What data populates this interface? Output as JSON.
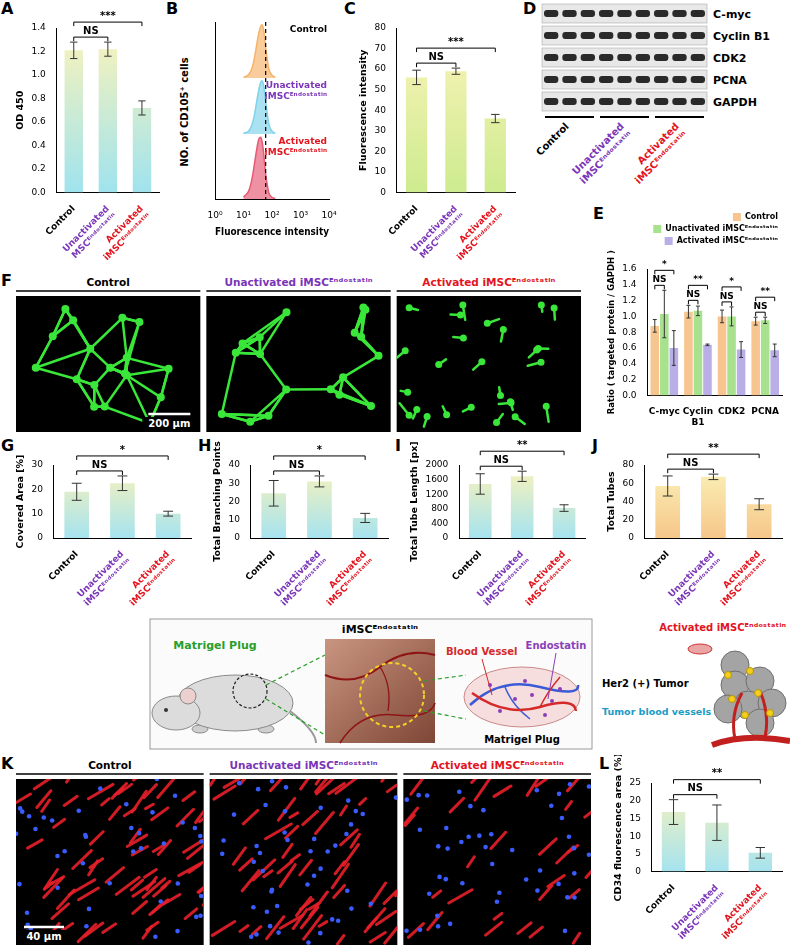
{
  "chart_data": [
    {
      "panel": "A",
      "type": "bar",
      "y_label": "OD 450",
      "categories": [
        "Control",
        "Unactivated MSCᴱⁿᵈᵒˢᵗᵃᵗⁱⁿ",
        "Activated iMSCᴱⁿᵈᵒˢᵗᵃᵗⁱⁿ"
      ],
      "values": [
        1.21,
        1.22,
        0.72
      ],
      "errors": [
        0.07,
        0.06,
        0.06
      ],
      "ylim": [
        0,
        1.4
      ],
      "yticks": [
        {
          "value": 0,
          "label": "0.0"
        },
        0.2,
        0.4,
        0.6,
        0.8,
        {
          "value": 1,
          "label": "1.0"
        },
        1.2,
        1.4
      ],
      "color": "#9fe3ee",
      "grid": false,
      "significance": [
        {
          "from": 0,
          "to": 1,
          "text": "NS"
        },
        {
          "from": 0,
          "to": 2,
          "text": "***"
        }
      ]
    },
    {
      "panel": "B",
      "type": "line",
      "x_label": "Fluorescence intensity",
      "y_label": "NO. of CD105⁺ cells",
      "log": "x",
      "xlim": [
        1,
        10000
      ],
      "xticks": [
        {
          "value": 1,
          "label": "10⁰"
        },
        {
          "value": 10,
          "label": "10¹"
        },
        {
          "value": 100,
          "label": "10²"
        },
        {
          "value": 1000,
          "label": "10³"
        },
        {
          "value": 10000,
          "label": "10⁴"
        }
      ],
      "ylim": [
        0,
        100
      ],
      "tick_labels": "x",
      "dashed_line_x": 60,
      "x": [
        10,
        15,
        20,
        25,
        30,
        35,
        40,
        45,
        50,
        55,
        60,
        70,
        80,
        100,
        130
      ],
      "series": [
        {
          "name": "Control",
          "color": "#f6b36a",
          "values": [
            1,
            6,
            18,
            40,
            64,
            82,
            92,
            95,
            88,
            72,
            54,
            30,
            14,
            5,
            1
          ]
        },
        {
          "name": "Unactivated iMSCᴱⁿᵈᵒˢᵗᵃᵗⁱⁿ",
          "color": "#7fd3ea",
          "values": [
            1,
            5,
            17,
            38,
            62,
            81,
            92,
            95,
            89,
            75,
            57,
            32,
            15,
            5,
            1
          ]
        },
        {
          "name": "Activated iMSCᴱⁿᵈᵒˢᵗᵃᵗⁱⁿ",
          "color": "#e65a74",
          "values": [
            3,
            12,
            32,
            58,
            80,
            93,
            95,
            88,
            74,
            55,
            38,
            19,
            8,
            3,
            1
          ]
        }
      ]
    },
    {
      "panel": "C",
      "type": "bar",
      "y_label": "Fluorescence intensity",
      "categories": [
        "Control",
        "Unactivated MSCᴱⁿᵈᵒˢᵗᵃᵗⁱⁿ",
        "Activated iMSCᴱⁿᵈᵒˢᵗᵃᵗⁱⁿ"
      ],
      "values": [
        56,
        59,
        36
      ],
      "errors": [
        3.5,
        1.5,
        2
      ],
      "ylim": [
        0,
        80
      ],
      "yticks": [
        0,
        10,
        20,
        30,
        40,
        50,
        60,
        70,
        80
      ],
      "color": "#cdeb8f",
      "grid": false,
      "significance": [
        {
          "from": 0,
          "to": 1,
          "text": "NS"
        },
        {
          "from": 0,
          "to": 2,
          "text": "***"
        }
      ]
    },
    {
      "panel": "E",
      "type": "bar",
      "y_label": "Ratio ( targeted protein / GAPDH )",
      "categories": [
        "C-myc",
        "Cyclin B1",
        "CDK2",
        "PCNA"
      ],
      "series": [
        {
          "name": "Control",
          "color": "#f7c58f",
          "values": [
            0.88,
            1.06,
            1.0,
            0.94
          ],
          "errors": [
            0.08,
            0.08,
            0.08,
            0.05
          ]
        },
        {
          "name": "Unactivated iMSCᴱⁿᵈᵒˢᵗᵃᵗⁱⁿ",
          "color": "#a9e28f",
          "values": [
            1.03,
            1.07,
            1.0,
            0.95
          ],
          "errors": [
            0.3,
            0.06,
            0.12,
            0.04
          ]
        },
        {
          "name": "Activated iMSCᴱⁿᵈᵒˢᵗᵃᵗⁱⁿ",
          "color": "#b9aee6",
          "values": [
            0.6,
            0.64,
            0.58,
            0.57
          ],
          "errors": [
            0.22,
            0.01,
            0.1,
            0.08
          ]
        }
      ],
      "ylim": [
        0,
        1.6
      ],
      "yticks": [
        {
          "value": 0,
          "label": "0.0"
        },
        0.2,
        0.4,
        0.6,
        0.8,
        {
          "value": 1,
          "label": "1.0"
        },
        1.2,
        1.4,
        1.6
      ],
      "grid": false,
      "legend": "top-right",
      "significance": [
        {
          "category": 0,
          "from": 0,
          "to": 1,
          "text": "NS"
        },
        {
          "category": 0,
          "from": 0,
          "to": 2,
          "text": "*"
        },
        {
          "category": 1,
          "from": 0,
          "to": 1,
          "text": "NS"
        },
        {
          "category": 1,
          "from": 0,
          "to": 2,
          "text": "**"
        },
        {
          "category": 2,
          "from": 0,
          "to": 1,
          "text": "NS"
        },
        {
          "category": 2,
          "from": 0,
          "to": 2,
          "text": "*"
        },
        {
          "category": 3,
          "from": 0,
          "to": 1,
          "text": "NS"
        },
        {
          "category": 3,
          "from": 0,
          "to": 2,
          "text": "**"
        }
      ]
    },
    {
      "panel": "G",
      "type": "bar",
      "y_label": "Covered Area [%]",
      "categories": [
        "Control",
        "Unactivated iMSCᴱⁿᵈᵒˢᵗᵃᵗⁱⁿ",
        "Activated iMSCᴱⁿᵈᵒˢᵗᵃᵗⁱⁿ"
      ],
      "values": [
        19,
        22.5,
        10
      ],
      "errors": [
        3.5,
        3,
        1
      ],
      "ylim": [
        0,
        30
      ],
      "yticks": [
        0,
        10,
        20,
        30
      ],
      "color": "#a6e3ef",
      "grid": false,
      "significance": [
        {
          "from": 0,
          "to": 1,
          "text": "NS"
        },
        {
          "from": 0,
          "to": 2,
          "text": "*"
        }
      ]
    },
    {
      "panel": "H",
      "type": "bar",
      "y_label": "Total Branching Points",
      "categories": [
        "Control",
        "Unactivated iMSCᴱⁿᵈᵒˢᵗᵃᵗⁱⁿ",
        "Activated iMSCᴱⁿᵈᵒˢᵗᵃᵗⁱⁿ"
      ],
      "values": [
        24.5,
        31,
        11
      ],
      "errors": [
        7,
        3,
        2.5
      ],
      "ylim": [
        0,
        40
      ],
      "yticks": [
        0,
        10,
        20,
        30,
        40
      ],
      "color": "#a6e3ef",
      "grid": false,
      "significance": [
        {
          "from": 0,
          "to": 1,
          "text": "NS"
        },
        {
          "from": 0,
          "to": 2,
          "text": "*"
        }
      ]
    },
    {
      "panel": "I",
      "type": "bar",
      "y_label": "Total Tube Length [px]",
      "categories": [
        "Control",
        "Unactivated iMSCᴱⁿᵈᵒˢᵗᵃᵗⁱⁿ",
        "Activated iMSCᴱⁿᵈᵒˢᵗᵃᵗⁱⁿ"
      ],
      "values": [
        1480,
        1690,
        820
      ],
      "errors": [
        280,
        140,
        90
      ],
      "ylim": [
        0,
        2000
      ],
      "yticks": [
        0,
        400,
        800,
        1200,
        1600,
        2000
      ],
      "color": "#a6e3ef",
      "grid": false,
      "significance": [
        {
          "from": 0,
          "to": 1,
          "text": "NS"
        },
        {
          "from": 0,
          "to": 2,
          "text": "**"
        }
      ]
    },
    {
      "panel": "J",
      "type": "bar",
      "y_label": "Total Tubes",
      "categories": [
        "Control",
        "Unactivated iMSCᴱⁿᵈᵒˢᵗᵃᵗⁱⁿ",
        "Activated iMSCᴱⁿᵈᵒˢᵗᵃᵗⁱⁿ"
      ],
      "values": [
        57,
        67,
        37
      ],
      "errors": [
        11,
        3,
        6
      ],
      "ylim": [
        0,
        80
      ],
      "yticks": [
        0,
        20,
        40,
        60,
        80
      ],
      "color": "#f6c68a",
      "grid": false,
      "significance": [
        {
          "from": 0,
          "to": 1,
          "text": "NS"
        },
        {
          "from": 0,
          "to": 2,
          "text": "**"
        }
      ]
    },
    {
      "panel": "L",
      "type": "bar",
      "y_label": "CD34 fluorescence area (%)",
      "categories": [
        "Control",
        "Unactivated iMSCᴱⁿᵈᵒˢᵗᵃᵗⁱⁿ",
        "Activated iMSCᴱⁿᵈᵒˢᵗᵃᵗⁱⁿ"
      ],
      "values": [
        16.8,
        13.8,
        5.3
      ],
      "errors": [
        3.5,
        5,
        1.5
      ],
      "ylim": [
        0,
        25
      ],
      "yticks": [
        0,
        5,
        10,
        15,
        20,
        25
      ],
      "color": "#a6e3ef",
      "grid": false,
      "significance": [
        {
          "from": 0,
          "to": 1,
          "text": "NS"
        },
        {
          "from": 0,
          "to": 2,
          "text": "**"
        }
      ]
    }
  ],
  "blot": {
    "panel": "D",
    "proteins": [
      "C-myc",
      "Cyclin B1",
      "CDK2",
      "PCNA",
      "GAPDH"
    ],
    "groups": [
      "Control",
      "Unactivated iMSCᴱⁿᵈᵒˢᵗᵃᵗⁱⁿ",
      "Activated iMSCᴱⁿᵈᵒˢᵗᵃᵗⁱⁿ"
    ],
    "lanes_per_group": 3
  },
  "images": [
    {
      "panel": "F",
      "titles": [
        "Control",
        "Unactivated iMSCᴱⁿᵈᵒˢᵗᵃᵗⁱⁿ",
        "Activated iMSCᴱⁿᵈᵒˢᵗᵃᵗⁱⁿ"
      ],
      "scale_bar": "200 μm",
      "color": "#39e639"
    },
    {
      "panel": "K",
      "titles": [
        "Control",
        "Unactivated iMSCᴱⁿᵈᵒˢᵗᵃᵗⁱⁿ",
        "Activated iMSCᴱⁿᵈᵒˢᵗᵃᵗⁱⁿ"
      ],
      "scale_bar": "40 μm",
      "colors": [
        "#e8202a",
        "#3a5cff"
      ]
    }
  ],
  "schematic": {
    "mouse_label": "Matrigel Plug",
    "photo_label": "iMSCᴱⁿᵈᵒˢᵗᵃᵗⁱⁿ",
    "vessel_label": "Blood Vessel",
    "drug_label": "Endostatin",
    "plug_label": "Matrigel Plug",
    "cell_label": "Activated iMSCᴱⁿᵈᵒˢᵗᵃᵗⁱⁿ",
    "tumor_label": "Her2 (+) Tumor",
    "tumor_vessel_label": "Tumor blood vessels"
  }
}
